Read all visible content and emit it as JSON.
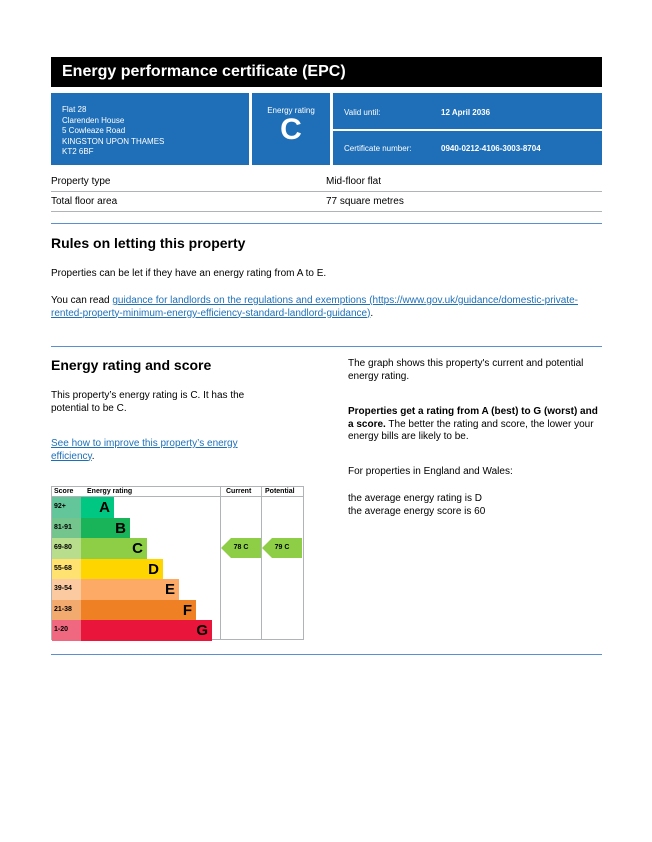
{
  "title": "Energy performance certificate (EPC)",
  "address": [
    "Flat 28",
    "Clarenden House",
    "5 Cowleaze Road",
    "KINGSTON UPON THAMES",
    "KT2 6BF"
  ],
  "energy_rating": {
    "label": "Energy rating",
    "value": "C"
  },
  "valid_until": {
    "label": "Valid until:",
    "value": "12 April 2036"
  },
  "certificate_number": {
    "label": "Certificate number:",
    "value": "0940-0212-4106-3003-8704"
  },
  "property": [
    {
      "label": "Property type",
      "value": "Mid-floor flat"
    },
    {
      "label": "Total floor area",
      "value": "77 square metres"
    }
  ],
  "letting": {
    "heading": "Rules on letting this property",
    "p1": "Properties can be let if they have an energy rating from A to E.",
    "p2_prefix": "You can read ",
    "p2_link": "guidance for landlords on the regulations and exemptions (https://www.gov.uk/guidance/domestic-private-rented-property-minimum-energy-efficiency-standard-landlord-guidance)",
    "p2_suffix": "."
  },
  "score": {
    "heading": "Energy rating and score",
    "p1": "This property’s energy rating is C. It has the potential to be C.",
    "link": "See how to improve this property’s energy efficiency",
    "link_suffix": ".",
    "right_p1": "The graph shows this property's current and potential energy rating.",
    "right_bold": "Properties get a rating from A (best) to G (worst) and a score.",
    "right_p2": " The better the rating and score, the lower your energy bills are likely to be.",
    "right_p3": "For properties in England and Wales:",
    "right_p4": "the average energy rating is D",
    "right_p5": "the average energy score is 60"
  },
  "chart_data": {
    "type": "table",
    "headers": [
      "Score",
      "Energy rating",
      "Current",
      "Potential"
    ],
    "bands": [
      {
        "range": "92+",
        "letter": "A",
        "color": "#00c781",
        "score_color": "#63c59a"
      },
      {
        "range": "81-91",
        "letter": "B",
        "color": "#19b459",
        "score_color": "#74c48e"
      },
      {
        "range": "69-80",
        "letter": "C",
        "color": "#8dce46",
        "score_color": "#b8dd8c"
      },
      {
        "range": "55-68",
        "letter": "D",
        "color": "#ffd500",
        "score_color": "#ffe270"
      },
      {
        "range": "39-54",
        "letter": "E",
        "color": "#fcaa65",
        "score_color": "#fccaa0"
      },
      {
        "range": "21-38",
        "letter": "F",
        "color": "#ef8023",
        "score_color": "#f3aa6f"
      },
      {
        "range": "1-20",
        "letter": "G",
        "color": "#e9153b",
        "score_color": "#ef6880"
      }
    ],
    "current": {
      "score": 78,
      "rating": "C",
      "label": "78  C"
    },
    "potential": {
      "score": 79,
      "rating": "C",
      "label": "79  C"
    }
  }
}
